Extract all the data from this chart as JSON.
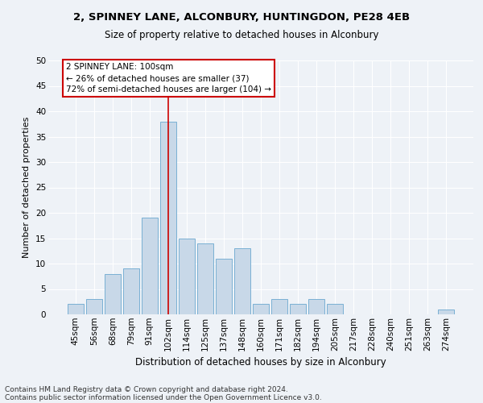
{
  "title1": "2, SPINNEY LANE, ALCONBURY, HUNTINGDON, PE28 4EB",
  "title2": "Size of property relative to detached houses in Alconbury",
  "xlabel": "Distribution of detached houses by size in Alconbury",
  "ylabel": "Number of detached properties",
  "categories": [
    "45sqm",
    "56sqm",
    "68sqm",
    "79sqm",
    "91sqm",
    "102sqm",
    "114sqm",
    "125sqm",
    "137sqm",
    "148sqm",
    "160sqm",
    "171sqm",
    "182sqm",
    "194sqm",
    "205sqm",
    "217sqm",
    "228sqm",
    "240sqm",
    "251sqm",
    "263sqm",
    "274sqm"
  ],
  "values": [
    2,
    3,
    8,
    9,
    19,
    38,
    15,
    14,
    11,
    13,
    2,
    3,
    2,
    3,
    2,
    0,
    0,
    0,
    0,
    0,
    1
  ],
  "bar_color": "#c8d8e8",
  "bar_edge_color": "#7ab0d4",
  "vline_x": 5,
  "vline_color": "#cc0000",
  "ylim": [
    0,
    50
  ],
  "yticks": [
    0,
    5,
    10,
    15,
    20,
    25,
    30,
    35,
    40,
    45,
    50
  ],
  "annotation_text": "2 SPINNEY LANE: 100sqm\n← 26% of detached houses are smaller (37)\n72% of semi-detached houses are larger (104) →",
  "annotation_box_color": "#ffffff",
  "annotation_box_edgecolor": "#cc0000",
  "footer1": "Contains HM Land Registry data © Crown copyright and database right 2024.",
  "footer2": "Contains public sector information licensed under the Open Government Licence v3.0.",
  "bg_color": "#eef2f7",
  "grid_color": "#ffffff",
  "title1_fontsize": 9.5,
  "title2_fontsize": 8.5,
  "ylabel_fontsize": 8,
  "xlabel_fontsize": 8.5,
  "tick_fontsize": 7.5,
  "footer_fontsize": 6.5
}
